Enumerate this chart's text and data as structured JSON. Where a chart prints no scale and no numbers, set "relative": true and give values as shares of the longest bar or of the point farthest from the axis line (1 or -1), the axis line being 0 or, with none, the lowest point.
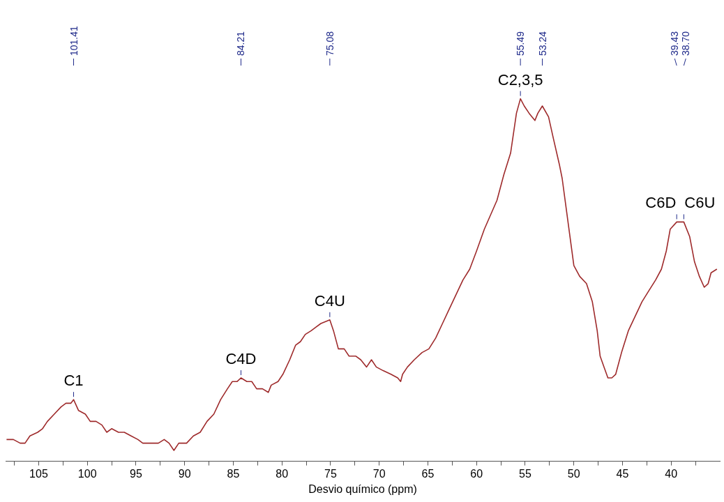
{
  "chart_data": {
    "type": "line",
    "xlabel": "Desvio químico (ppm)",
    "relative": true,
    "color": "#9e2a2b",
    "legend": false,
    "grid": false,
    "marker": "none",
    "line_style": "solid",
    "xlim": [
      108.4,
      35.0
    ],
    "xticks": [
      {
        "value": 107.5,
        "label": null
      },
      105,
      {
        "value": 102.5,
        "label": null
      },
      100,
      {
        "value": 97.5,
        "label": null
      },
      95,
      {
        "value": 92.5,
        "label": null
      },
      90,
      {
        "value": 87.5,
        "label": null
      },
      85,
      {
        "value": 82.5,
        "label": null
      },
      80,
      {
        "value": 77.5,
        "label": null
      },
      75,
      {
        "value": 72.5,
        "label": null
      },
      70,
      {
        "value": 67.5,
        "label": null
      },
      65,
      {
        "value": 62.5,
        "label": null
      },
      60,
      {
        "value": 57.5,
        "label": null
      },
      55,
      {
        "value": 52.5,
        "label": null
      },
      50,
      {
        "value": 47.5,
        "label": null
      },
      45,
      {
        "value": 42.5,
        "label": null
      },
      40,
      {
        "value": 37.5,
        "label": null
      }
    ],
    "x": [
      108.3,
      107.6,
      106.9,
      106.4,
      105.9,
      105.1,
      104.6,
      104.1,
      103.4,
      102.7,
      102.2,
      101.7,
      101.41,
      100.9,
      100.2,
      99.7,
      99.1,
      98.5,
      98.0,
      97.5,
      96.8,
      96.2,
      95.5,
      94.8,
      94.3,
      93.8,
      93.3,
      92.7,
      92.1,
      91.6,
      91.1,
      90.6,
      89.8,
      89.1,
      88.4,
      87.7,
      87.0,
      86.3,
      85.6,
      85.1,
      84.6,
      84.21,
      83.6,
      83.1,
      82.6,
      82.0,
      81.4,
      81.1,
      80.4,
      79.9,
      79.2,
      78.6,
      78.1,
      77.6,
      77.0,
      76.5,
      76.0,
      75.08,
      74.7,
      74.2,
      73.6,
      73.1,
      72.4,
      71.9,
      71.3,
      70.8,
      70.3,
      69.6,
      68.8,
      68.1,
      67.8,
      67.6,
      67.1,
      66.4,
      65.6,
      64.9,
      64.2,
      63.5,
      62.8,
      62.1,
      61.4,
      60.7,
      60.0,
      59.2,
      57.9,
      57.2,
      56.5,
      55.9,
      55.49,
      55.1,
      54.6,
      54.0,
      53.7,
      53.24,
      52.6,
      52.1,
      51.5,
      51.2,
      50.8,
      50.3,
      50.0,
      49.4,
      48.7,
      48.1,
      47.6,
      47.3,
      46.9,
      46.5,
      46.1,
      45.7,
      45.1,
      44.4,
      43.7,
      43.0,
      42.3,
      41.6,
      41.0,
      40.5,
      40.1,
      39.43,
      39.0,
      38.7,
      38.1,
      37.6,
      37.1,
      36.6,
      36.2,
      35.9,
      35.3
    ],
    "values": [
      0.06,
      0.06,
      0.05,
      0.05,
      0.07,
      0.08,
      0.09,
      0.11,
      0.13,
      0.15,
      0.16,
      0.16,
      0.17,
      0.14,
      0.13,
      0.11,
      0.11,
      0.1,
      0.08,
      0.09,
      0.08,
      0.08,
      0.07,
      0.06,
      0.05,
      0.05,
      0.05,
      0.05,
      0.06,
      0.05,
      0.03,
      0.05,
      0.05,
      0.07,
      0.08,
      0.11,
      0.13,
      0.17,
      0.2,
      0.22,
      0.22,
      0.23,
      0.22,
      0.22,
      0.2,
      0.2,
      0.19,
      0.21,
      0.22,
      0.24,
      0.28,
      0.32,
      0.33,
      0.35,
      0.36,
      0.37,
      0.38,
      0.39,
      0.36,
      0.31,
      0.31,
      0.29,
      0.29,
      0.28,
      0.26,
      0.28,
      0.26,
      0.25,
      0.24,
      0.23,
      0.22,
      0.24,
      0.26,
      0.28,
      0.3,
      0.31,
      0.34,
      0.38,
      0.42,
      0.46,
      0.5,
      0.53,
      0.58,
      0.64,
      0.72,
      0.79,
      0.85,
      0.96,
      1,
      0.98,
      0.96,
      0.94,
      0.96,
      0.98,
      0.95,
      0.89,
      0.82,
      0.78,
      0.7,
      0.6,
      0.54,
      0.51,
      0.49,
      0.44,
      0.36,
      0.29,
      0.26,
      0.23,
      0.23,
      0.24,
      0.3,
      0.36,
      0.4,
      0.44,
      0.47,
      0.5,
      0.53,
      0.58,
      0.64,
      0.66,
      0.66,
      0.66,
      0.62,
      0.55,
      0.51,
      0.48,
      0.49,
      0.52,
      0.53
    ],
    "annotations": [
      {
        "text": "101.41",
        "x": 101.41
      },
      {
        "text": "84.21",
        "x": 84.21
      },
      {
        "text": "75.08",
        "x": 75.08
      },
      {
        "text": "55.49",
        "x": 55.49
      },
      {
        "text": "53.24",
        "x": 53.24
      },
      {
        "text": "39.43",
        "x": 39.43
      },
      {
        "text": "38.70",
        "x": 38.7
      },
      {
        "text": "C1",
        "x": 101.41,
        "y": 0.17
      },
      {
        "text": "C4D",
        "x": 84.21,
        "y": 0.23
      },
      {
        "text": "C4U",
        "x": 75.08,
        "y": 0.39
      },
      {
        "text": "C2,3,5",
        "x": 55.49,
        "y": 1
      },
      {
        "text": "C6D",
        "x": 39.43,
        "y": 0.66
      },
      {
        "text": "C6U",
        "x": 38.7,
        "y": 0.66
      }
    ]
  }
}
